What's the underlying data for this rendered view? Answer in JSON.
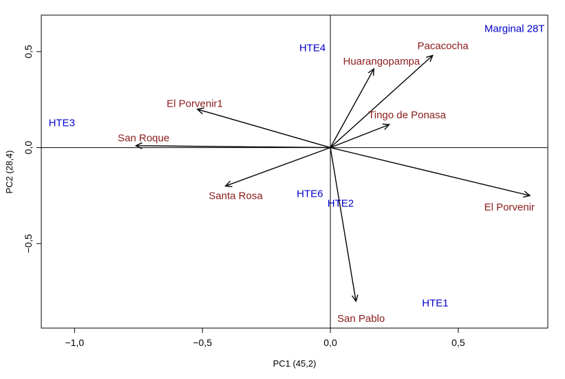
{
  "chart_data": {
    "type": "scatter",
    "subtype": "biplot",
    "xlabel": "PC1 (45,2)",
    "ylabel": "PC2 (28,4)",
    "xlim": [
      -1.13,
      0.85
    ],
    "ylim": [
      -0.94,
      0.69
    ],
    "x_ticks": [
      {
        "value": -1.0,
        "label": "−1,0"
      },
      {
        "value": -0.5,
        "label": "−0,5"
      },
      {
        "value": 0.0,
        "label": "0,0"
      },
      {
        "value": 0.5,
        "label": "0,5"
      }
    ],
    "y_ticks": [
      {
        "value": -0.5,
        "label": "−0,5"
      },
      {
        "value": 0.0,
        "label": "0,0"
      },
      {
        "value": 0.5,
        "label": "0,5"
      }
    ],
    "reference_lines": {
      "x": 0,
      "y": 0
    },
    "colors": {
      "variables": "#8b1a1a",
      "observations": "#0000cc",
      "axes": "#000000"
    },
    "variables": [
      {
        "name": "Pacacocha",
        "x": 0.4,
        "y": 0.48
      },
      {
        "name": "Huarangopampa",
        "x": 0.17,
        "y": 0.41
      },
      {
        "name": "Tingo de Ponasa",
        "x": 0.23,
        "y": 0.12
      },
      {
        "name": "El Porvenir1",
        "x": -0.52,
        "y": 0.2
      },
      {
        "name": "San Roque",
        "x": -0.76,
        "y": 0.01
      },
      {
        "name": "Santa Rosa",
        "x": -0.41,
        "y": -0.2
      },
      {
        "name": "El Porvenir",
        "x": 0.78,
        "y": -0.25
      },
      {
        "name": "San Pablo",
        "x": 0.1,
        "y": -0.8
      }
    ],
    "variable_label_positions": [
      {
        "x": 0.44,
        "y": 0.53
      },
      {
        "x": 0.2,
        "y": 0.45
      },
      {
        "x": 0.3,
        "y": 0.17
      },
      {
        "x": -0.53,
        "y": 0.23
      },
      {
        "x": -0.73,
        "y": 0.05
      },
      {
        "x": -0.37,
        "y": -0.25
      },
      {
        "x": 0.7,
        "y": -0.31
      },
      {
        "x": 0.12,
        "y": -0.89
      }
    ],
    "observations": [
      {
        "name": "Marginal 28T",
        "x": 0.72,
        "y": 0.62
      },
      {
        "name": "HTE4",
        "x": -0.07,
        "y": 0.52
      },
      {
        "name": "HTE3",
        "x": -1.05,
        "y": 0.13
      },
      {
        "name": "HTE6",
        "x": -0.08,
        "y": -0.24
      },
      {
        "name": "HTE2",
        "x": 0.04,
        "y": -0.29
      },
      {
        "name": "HTE1",
        "x": 0.41,
        "y": -0.81
      }
    ]
  }
}
